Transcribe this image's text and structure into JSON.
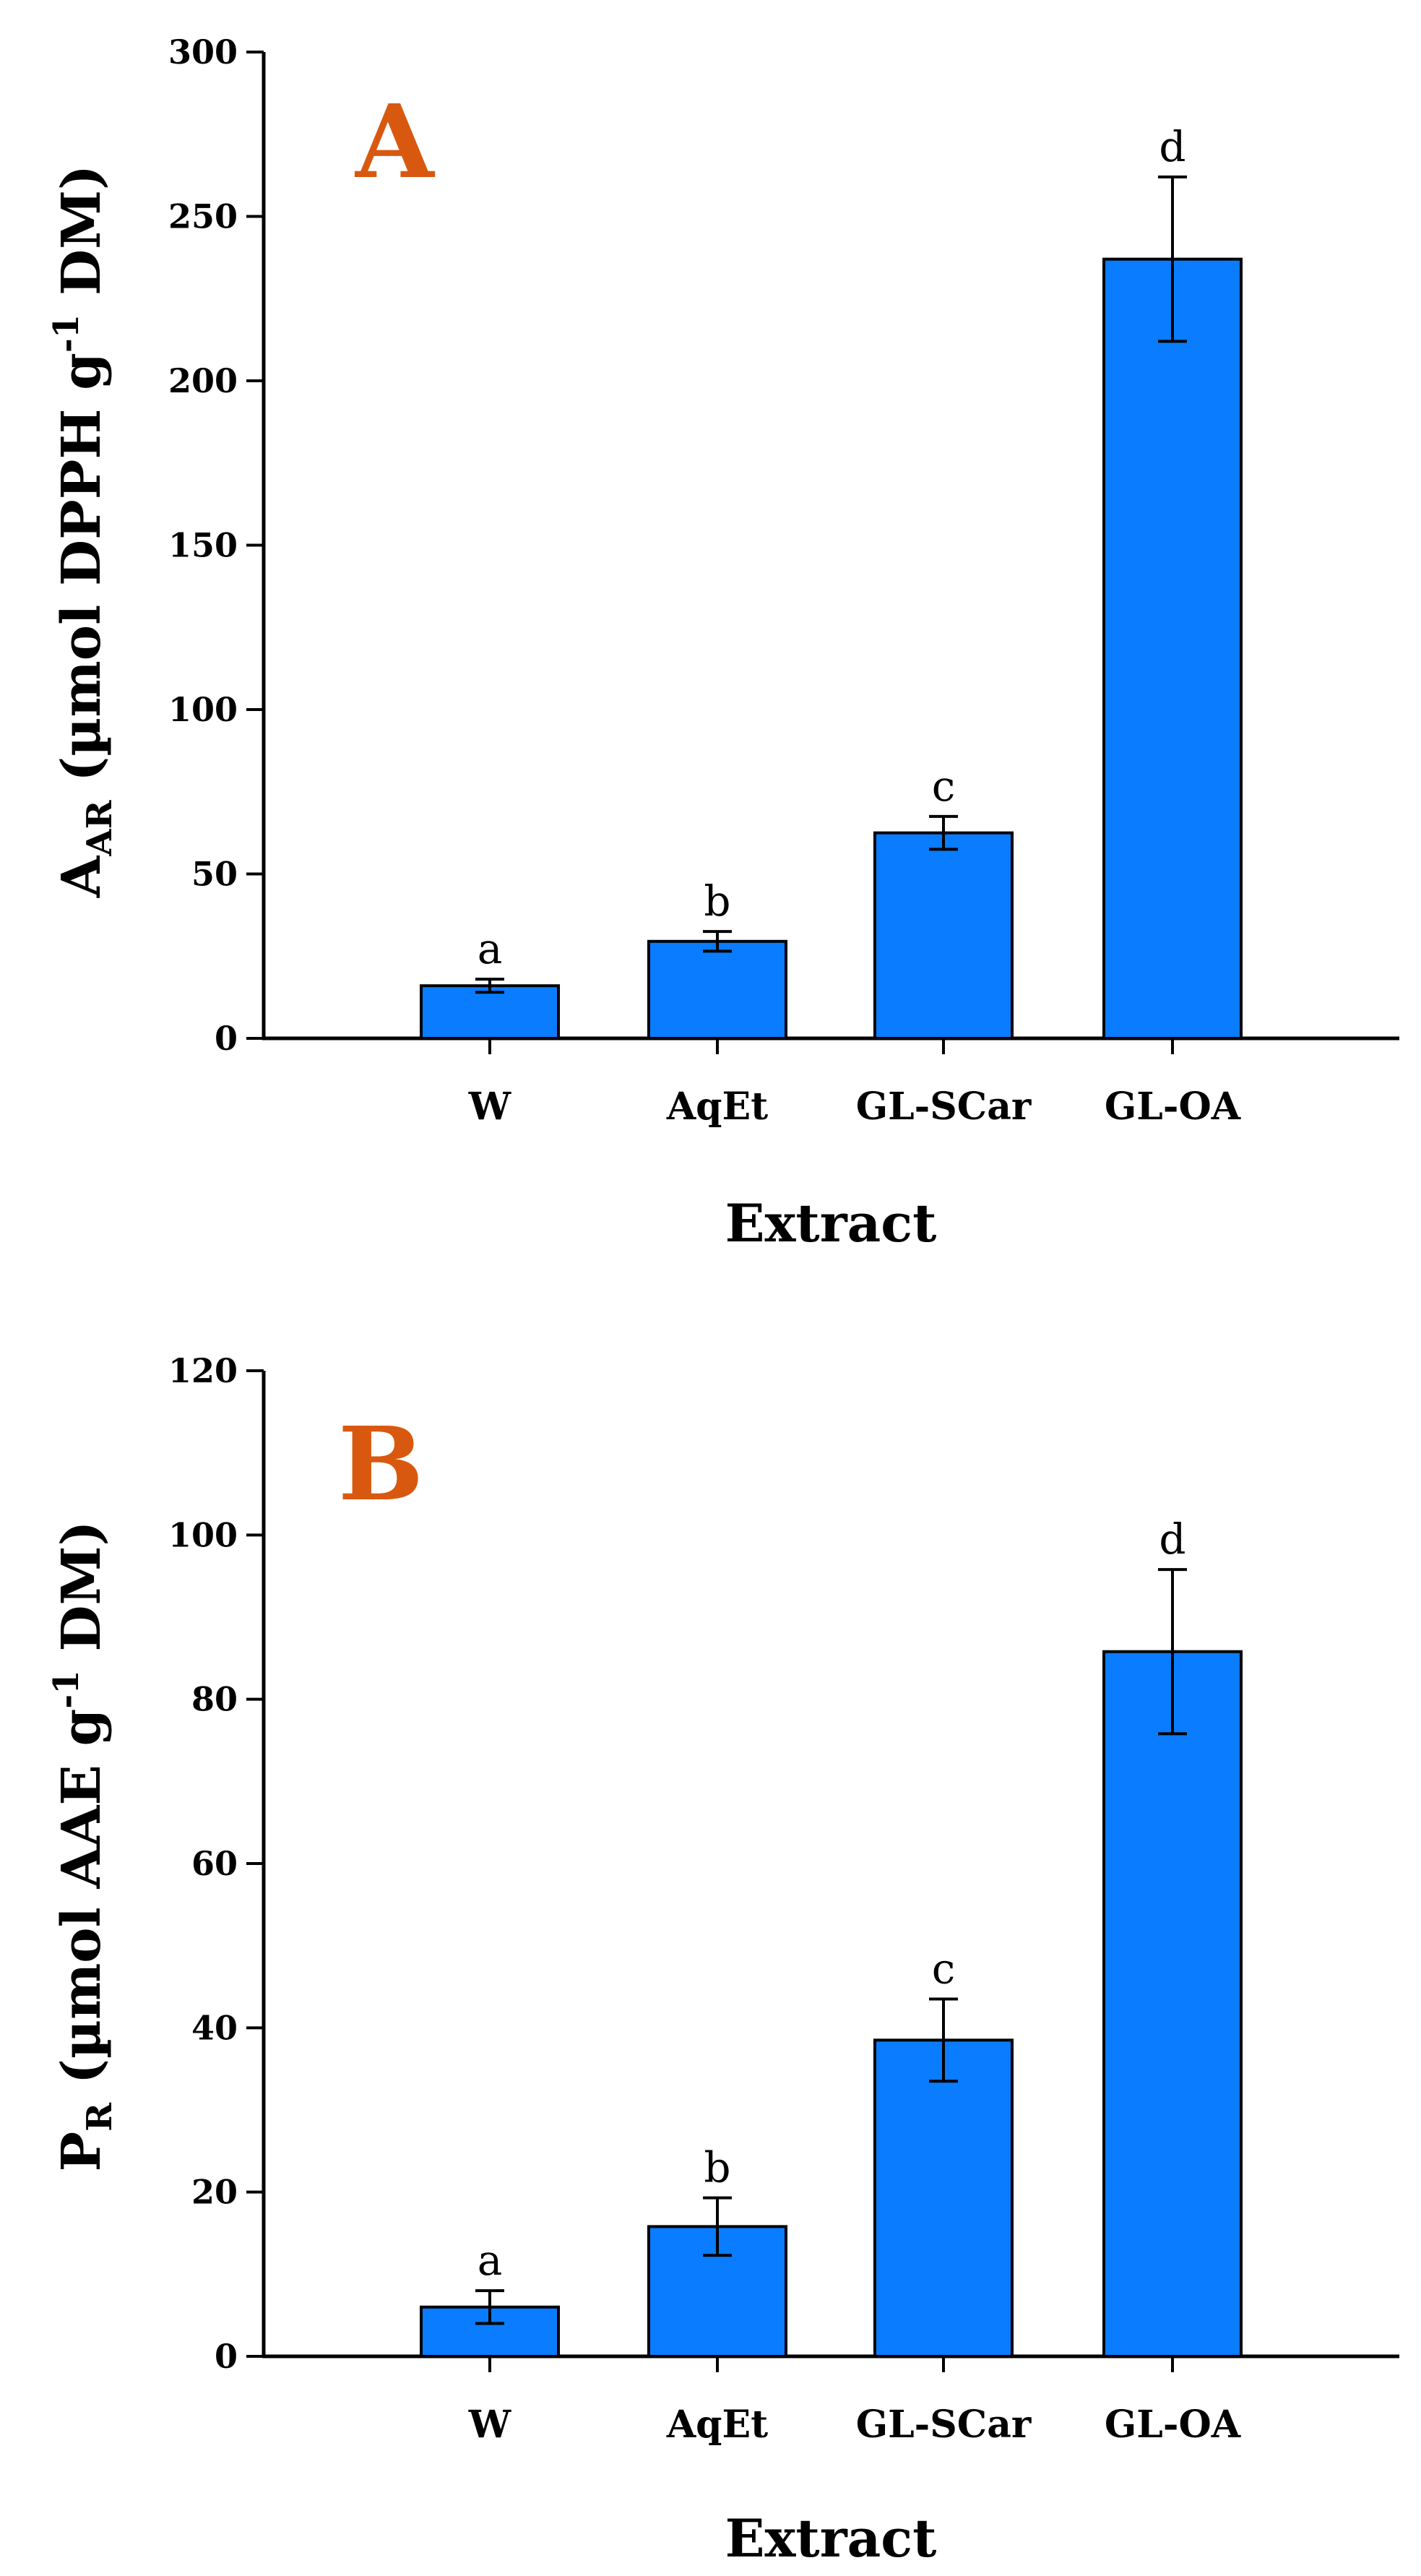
{
  "chart_data": [
    {
      "type": "bar",
      "panel_label": "A",
      "categories": [
        "W",
        "AqEt",
        "GL-SCar",
        "GL-OA"
      ],
      "values": [
        16,
        29.5,
        62.5,
        237
      ],
      "errors": [
        2,
        3,
        5,
        25
      ],
      "significance": [
        "a",
        "b",
        "c",
        "d"
      ],
      "xlabel": "Extract",
      "ylabel": {
        "main": "A",
        "sub": "AR",
        "text1": " (µmol DPPH  g",
        "sup": "-1",
        "text2": " DM)"
      },
      "ylim": [
        0,
        300
      ],
      "yticks": [
        "0",
        "50",
        "100",
        "150",
        "200",
        "250",
        "300"
      ],
      "grid": false,
      "bar_color": "#0a7cff",
      "panel_label_color": "#d9580f"
    },
    {
      "type": "bar",
      "panel_label": "B",
      "categories": [
        "W",
        "AqEt",
        "GL-SCar",
        "GL-OA"
      ],
      "values": [
        6,
        15.8,
        38.5,
        85.8
      ],
      "errors": [
        2,
        3.5,
        5,
        10
      ],
      "significance": [
        "a",
        "b",
        "c",
        "d"
      ],
      "xlabel": "Extract",
      "ylabel": {
        "main": "P",
        "sub": "R",
        "text1": " (µmol AAE  g",
        "sup": "-1",
        "text2": " DM)"
      },
      "ylim": [
        0,
        120
      ],
      "yticks": [
        "0",
        "20",
        "40",
        "60",
        "80",
        "100",
        "120"
      ],
      "grid": false,
      "bar_color": "#0a7cff",
      "panel_label_color": "#d9580f"
    }
  ]
}
